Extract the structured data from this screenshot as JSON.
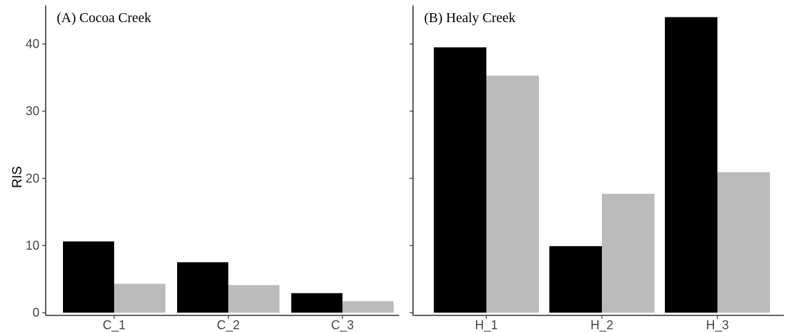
{
  "chart_data": {
    "type": "bar",
    "ylabel": "RIS",
    "ylim": [
      0,
      44
    ],
    "yticks": [
      0,
      10,
      20,
      30,
      40
    ],
    "series_colors": [
      "#000000",
      "#bbbbbb"
    ],
    "grid": false,
    "legend": "none",
    "panels": [
      {
        "title": "(A) Cocoa Creek",
        "categories": [
          "C_1",
          "C_2",
          "C_3"
        ],
        "series": [
          {
            "values": [
              10.6,
              7.5,
              2.9
            ]
          },
          {
            "values": [
              4.3,
              4.1,
              1.7
            ]
          }
        ]
      },
      {
        "title": "(B) Healy Creek",
        "categories": [
          "H_1",
          "H_2",
          "H_3"
        ],
        "series": [
          {
            "values": [
              39.5,
              9.9,
              44.0
            ]
          },
          {
            "values": [
              35.3,
              17.7,
              20.9
            ]
          }
        ]
      }
    ]
  }
}
